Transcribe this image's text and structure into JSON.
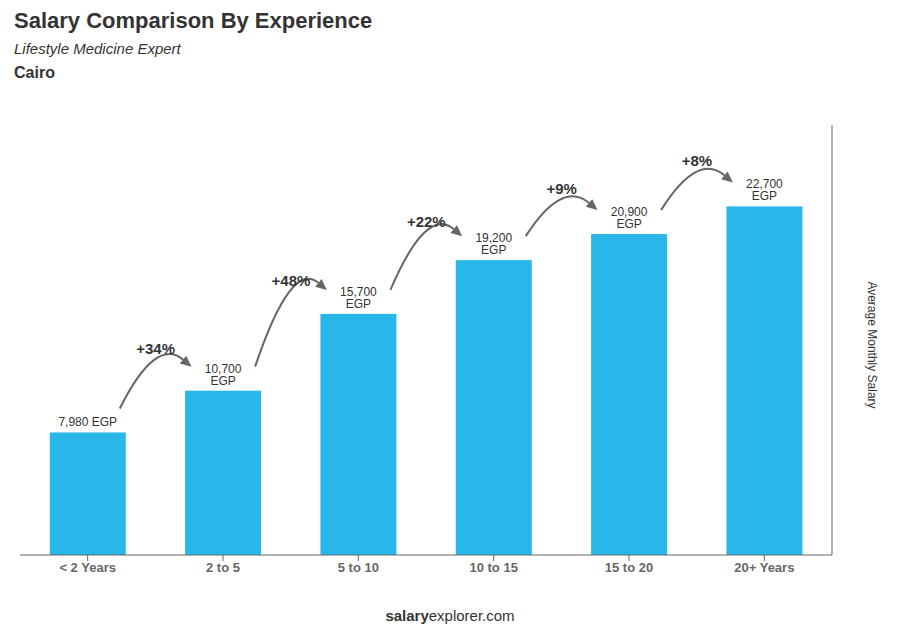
{
  "chart_data": {
    "type": "bar",
    "title": "Salary Comparison By Experience",
    "subtitle": "Lifestyle Medicine Expert",
    "ylabel": "Average Monthly Salary",
    "categories": [
      "< 2 Years",
      "2 to 5",
      "5 to 10",
      "10 to 15",
      "15 to 20",
      "20+ Years"
    ],
    "values": [
      7980,
      10700,
      15700,
      19200,
      20900,
      22700
    ],
    "value_labels": [
      "7,980 EGP",
      "10,700 EGP",
      "15,700 EGP",
      "19,200 EGP",
      "20,900 EGP",
      "22,700 EGP"
    ],
    "data_labels": true,
    "color": "#29b6e8",
    "ylim": [
      0,
      28000
    ],
    "tick_labels": "x",
    "grid": false,
    "annotations": {
      "location": "Cairo",
      "changes": [
        "+34%",
        "+48%",
        "+22%",
        "+9%",
        "+8%"
      ],
      "source": [
        "salary",
        "explorer.com"
      ]
    }
  }
}
